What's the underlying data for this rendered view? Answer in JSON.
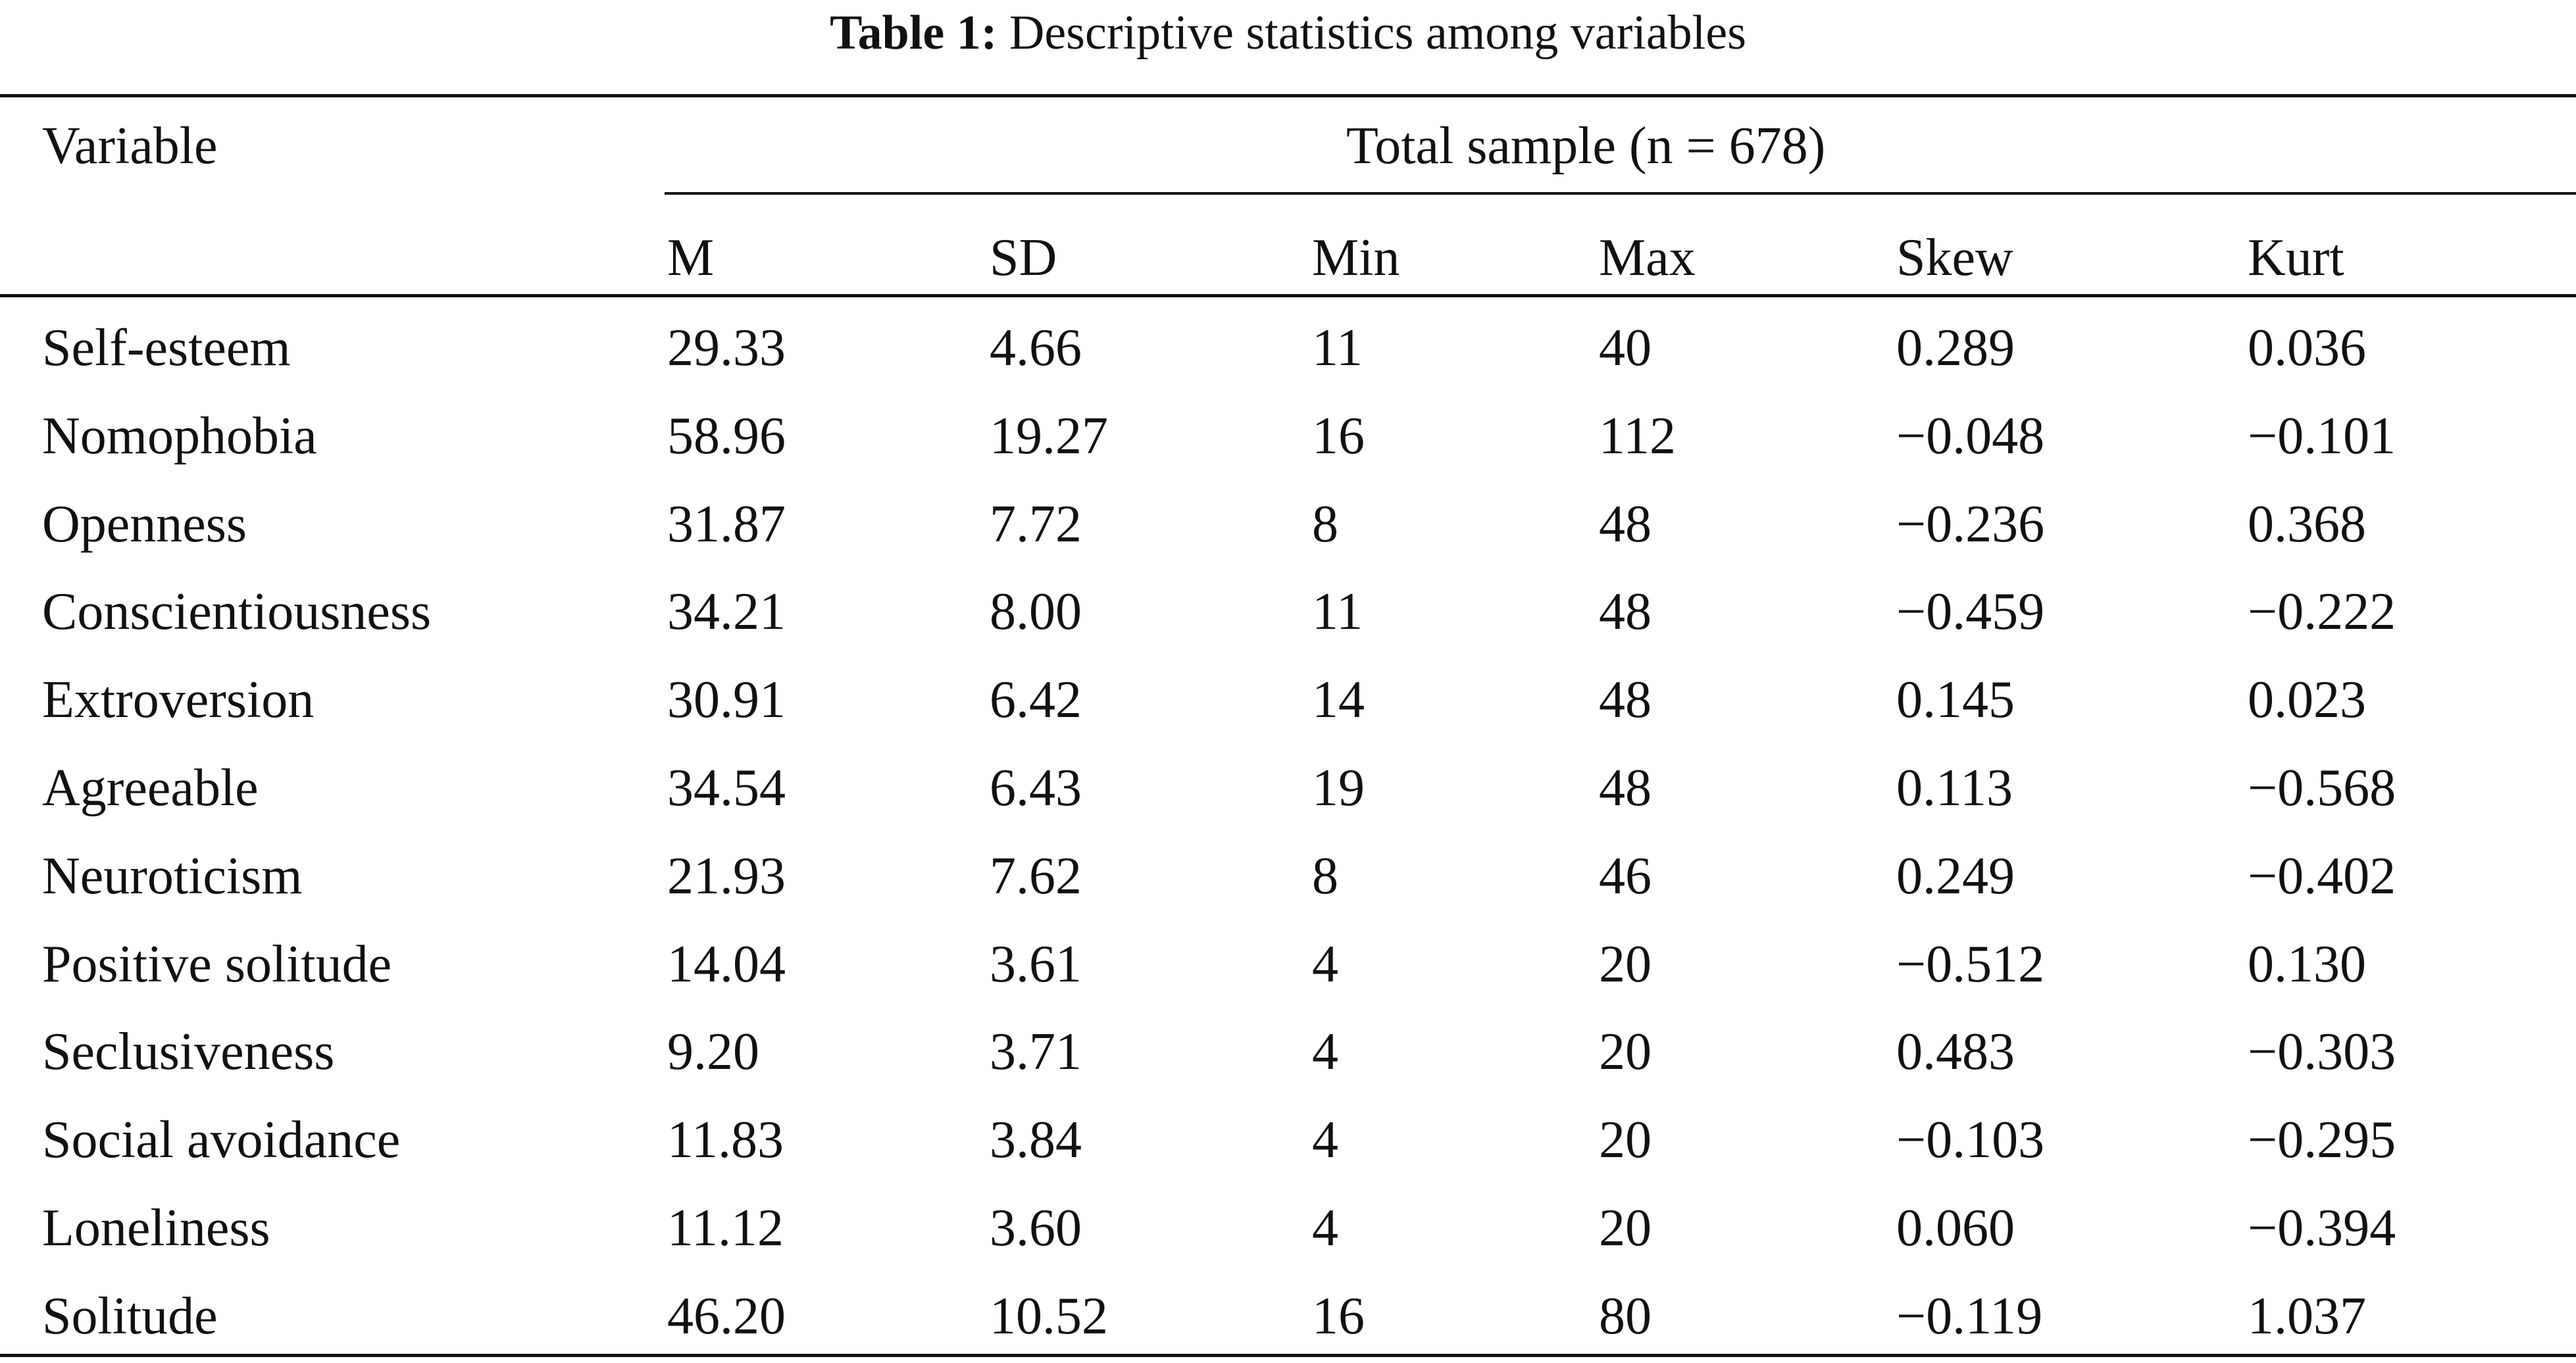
{
  "table": {
    "caption_label": "Table 1:",
    "caption_text": "Descriptive statistics among variables",
    "variable_header": "Variable",
    "span_header": "Total sample (n = 678)",
    "columns": [
      "M",
      "SD",
      "Min",
      "Max",
      "Skew",
      "Kurt"
    ],
    "rows": [
      [
        "Self-esteem",
        "29.33",
        "4.66",
        "11",
        "40",
        "0.289",
        "0.036"
      ],
      [
        "Nomophobia",
        "58.96",
        "19.27",
        "16",
        "112",
        "−0.048",
        "−0.101"
      ],
      [
        "Openness",
        "31.87",
        "7.72",
        "8",
        "48",
        "−0.236",
        "0.368"
      ],
      [
        "Conscientiousness",
        "34.21",
        "8.00",
        "11",
        "48",
        "−0.459",
        "−0.222"
      ],
      [
        "Extroversion",
        "30.91",
        "6.42",
        "14",
        "48",
        "0.145",
        "0.023"
      ],
      [
        "Agreeable",
        "34.54",
        "6.43",
        "19",
        "48",
        "0.113",
        "−0.568"
      ],
      [
        "Neuroticism",
        "21.93",
        "7.62",
        "8",
        "46",
        "0.249",
        "−0.402"
      ],
      [
        "Positive solitude",
        "14.04",
        "3.61",
        "4",
        "20",
        "−0.512",
        "0.130"
      ],
      [
        "Seclusiveness",
        "9.20",
        "3.71",
        "4",
        "20",
        "0.483",
        "−0.303"
      ],
      [
        "Social avoidance",
        "11.83",
        "3.84",
        "4",
        "20",
        "−0.103",
        "−0.295"
      ],
      [
        "Loneliness",
        "11.12",
        "3.60",
        "4",
        "20",
        "0.060",
        "−0.394"
      ],
      [
        "Solitude",
        "46.20",
        "10.52",
        "16",
        "80",
        "−0.119",
        "1.037"
      ]
    ]
  }
}
